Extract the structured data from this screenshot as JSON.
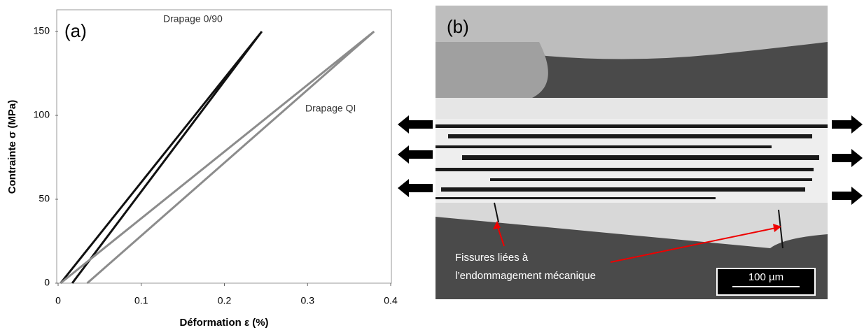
{
  "chart_data": {
    "type": "line",
    "panel_label": "(a)",
    "xlabel": "Déformation ε (%)",
    "ylabel": "Contrainte σ (MPa)",
    "xlim": [
      0,
      0.4
    ],
    "ylim": [
      0,
      150
    ],
    "xticks": [
      0,
      0.1,
      0.2,
      0.3,
      0.4
    ],
    "yticks": [
      0,
      50,
      100,
      150
    ],
    "series": [
      {
        "name": "Drapage 0/90",
        "color": "#111111",
        "x": [
          0.003,
          0.245,
          0.017
        ],
        "values": [
          0,
          150,
          0
        ]
      },
      {
        "name": "Drapage QI",
        "color": "#8c8c8c",
        "x": [
          0.003,
          0.38,
          0.035
        ],
        "values": [
          0,
          150,
          0
        ]
      }
    ]
  },
  "micrograph": {
    "panel_label": "(b)",
    "annotation": [
      "Fissures liées à",
      "l’endommagement mécanique"
    ],
    "scale_bar": "100 µm"
  }
}
